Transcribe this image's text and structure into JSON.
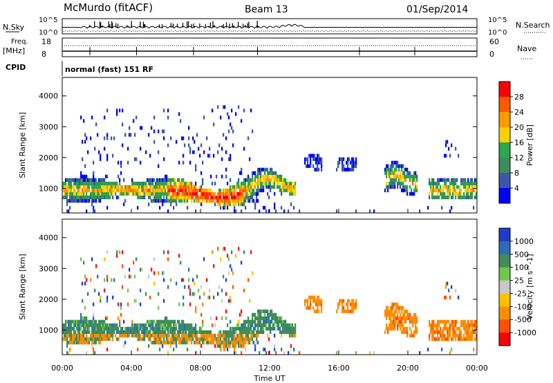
{
  "header": {
    "station": "McMurdo (fitACF)",
    "beam": "Beam 13",
    "date": "01/Sep/2014"
  },
  "top_panels": {
    "nsky_label": "N.Sky",
    "nsearch_label": "N.Search",
    "nsky_ticks": [
      "10^5",
      "10^0"
    ],
    "nsearch_ticks": [
      "10^5",
      "10^0"
    ],
    "freq_label": "Freq.",
    "freq_unit": "[MHz]",
    "freq_ticks": [
      "18",
      "8"
    ],
    "nave_label": "Nave",
    "nave_ticks": [
      "60",
      "0"
    ],
    "cpid_label": "CPID",
    "cpid_text": "normal (fast) 151 RF"
  },
  "chart_data": [
    {
      "type": "heatmap",
      "name": "Power",
      "ylabel": "Slant Range [km]",
      "xlabel": "",
      "yticks": [
        1000,
        2000,
        3000,
        4000
      ],
      "ylim": [
        200,
        4600
      ],
      "colorbar": {
        "label": "Power [dB]",
        "ticks": [
          "28",
          "24",
          "20",
          "16",
          "12",
          "8",
          "4"
        ],
        "colors": [
          "#ff0000",
          "#ff5a00",
          "#ff9900",
          "#ffd000",
          "#2aa84a",
          "#3c8c5c",
          "#3a58a8",
          "#0000ff"
        ]
      }
    },
    {
      "type": "heatmap",
      "name": "Velocity",
      "ylabel": "Slant Range [km]",
      "xlabel": "Time UT",
      "xticks": [
        "00:00",
        "04:00",
        "08:00",
        "12:00",
        "16:00",
        "20:00",
        "00:00"
      ],
      "yticks": [
        1000,
        2000,
        3000,
        4000
      ],
      "ylim": [
        200,
        4600
      ],
      "colorbar": {
        "label": "Velocity [m s^-1]",
        "ticks": [
          "1000",
          "500",
          "100",
          "25",
          "-25",
          "-100",
          "-500",
          "-1000"
        ],
        "colors": [
          "#1f3cc8",
          "#2c6db4",
          "#3f8c5c",
          "#6cc84a",
          "#c8c8c8",
          "#ffc000",
          "#ff8c00",
          "#ff5000",
          "#ff0000"
        ]
      }
    }
  ]
}
